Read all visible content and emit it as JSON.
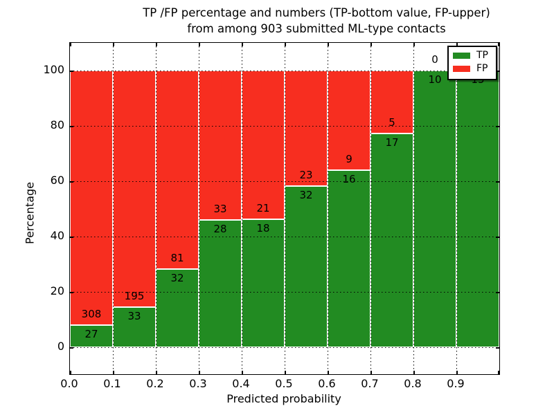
{
  "figure": {
    "title_line1": "TP /FP percentage and numbers (TP-bottom value, FP-upper)",
    "title_line2": "from among 903 submitted ML-type contacts"
  },
  "chart_data": {
    "type": "bar",
    "stacked": true,
    "title": "TP /FP percentage and numbers (TP-bottom value, FP-upper) from among 903 submitted ML-type contacts",
    "xlabel": "Predicted probability",
    "ylabel": "Percentage",
    "total_contacts": 903,
    "categories": [
      "0.0",
      "0.1",
      "0.2",
      "0.3",
      "0.4",
      "0.5",
      "0.6",
      "0.7",
      "0.8",
      "0.9"
    ],
    "bin_width": 0.1,
    "series": [
      {
        "name": "TP",
        "color": "#228B22",
        "values": [
          27,
          33,
          32,
          28,
          18,
          32,
          16,
          17,
          10,
          15
        ]
      },
      {
        "name": "FP",
        "color": "#F72E20",
        "values": [
          308,
          195,
          81,
          33,
          21,
          23,
          9,
          5,
          0,
          0
        ]
      }
    ],
    "bar_value_labels": "FP count shown above the TP/FP boundary, TP count shown below it; bars normalized to 100%",
    "y_axis": {
      "ticks": [
        0,
        20,
        40,
        60,
        80,
        100
      ],
      "lim": [
        -10,
        110
      ],
      "unit": "percent"
    },
    "x_axis": {
      "ticks": [
        "0.0",
        "0.1",
        "0.2",
        "0.3",
        "0.4",
        "0.5",
        "0.6",
        "0.7",
        "0.8",
        "0.9"
      ],
      "lim": [
        0.0,
        1.0
      ]
    },
    "legend": {
      "position": "upper right",
      "entries": [
        {
          "label": "TP",
          "color": "#228B22"
        },
        {
          "label": "FP",
          "color": "#F72E20"
        }
      ]
    },
    "grid": true
  }
}
